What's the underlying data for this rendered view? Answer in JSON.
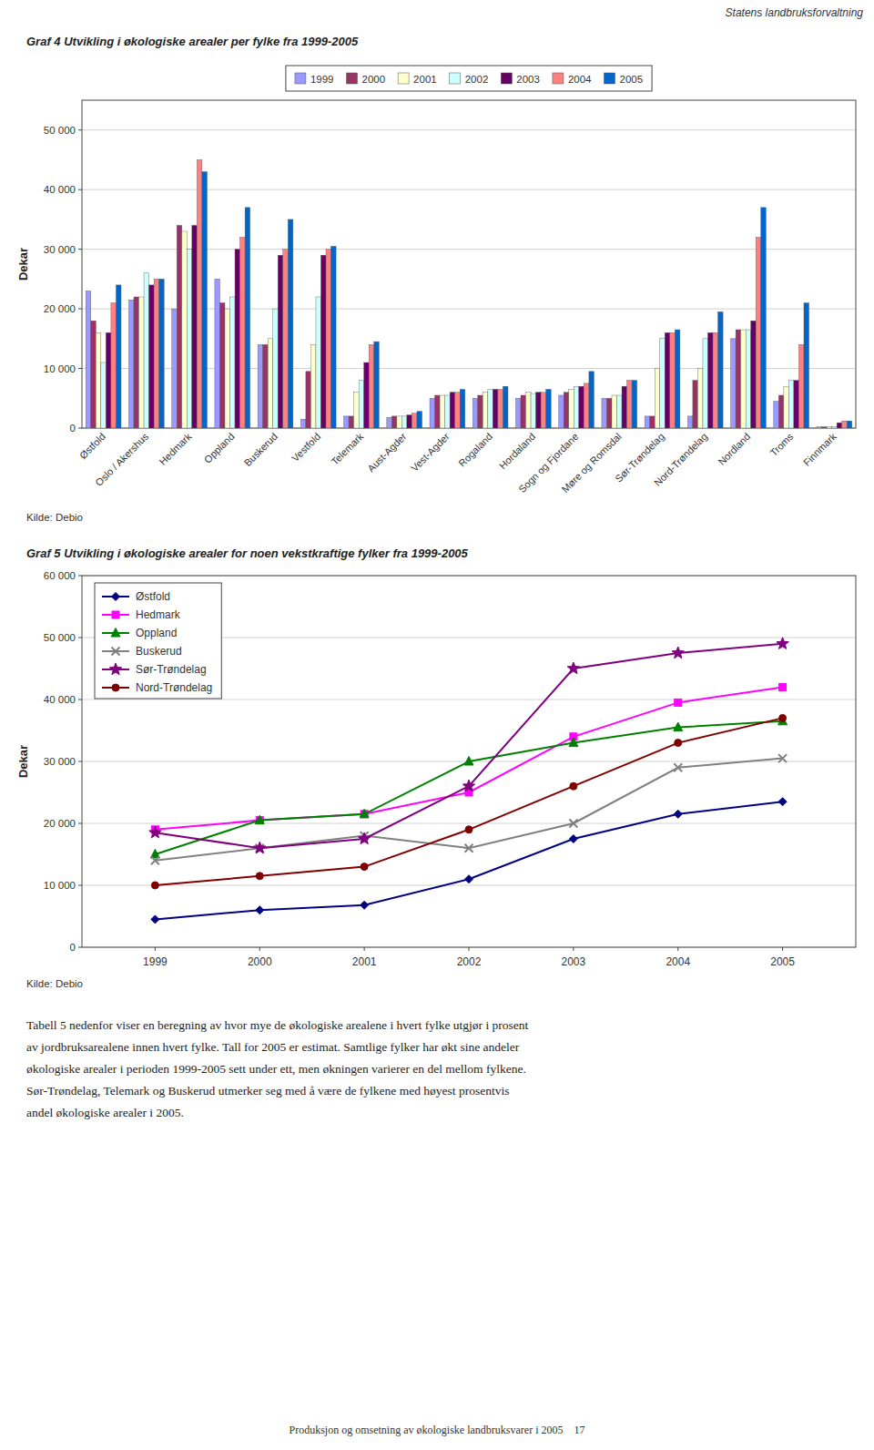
{
  "page_title": "Statens landbruksforvaltning",
  "body_text": "Tabell 5 nedenfor viser en beregning av hvor mye de økologiske arealene i hvert fylke utgjør i prosent\nav jordbruksarealene innen hvert fylke. Tall for 2005 er estimat. Samtlige fylker har økt sine andeler\nøkologiske arealer i perioden 1999-2005 sett under ett, men økningen varierer en del mellom fylkene.\nSør-Trøndelag, Telemark og Buskerud utmerker seg med å være de fylkene med høyest prosentvis\nandel økologiske arealer i 2005.",
  "footer": "Produksjon og omsetning av økologiske landbruksvarer i 2005    17",
  "chart_data": [
    {
      "type": "bar",
      "title": "Graf 4 Utvikling i økologiske arealer per fylke fra 1999-2005",
      "y_label": "Dekar",
      "annotations": [
        "Kilde: Debio"
      ],
      "categories": [
        "Østfold",
        "Oslo / Akershus",
        "Hedmark",
        "Oppland",
        "Buskerud",
        "Vestfold",
        "Telemark",
        "Aust-Agder",
        "Vest-Agder",
        "Rogaland",
        "Hordaland",
        "Sogn og Fjordane",
        "Møre og Romsdal",
        "Sør-Trøndelag",
        "Nord-Trøndelag",
        "Nordland",
        "Troms",
        "Finnmark"
      ],
      "series": [
        {
          "name": "1999",
          "color": "#9999ff",
          "values": [
            23000,
            21500,
            20000,
            25000,
            14000,
            1500,
            2000,
            1800,
            5000,
            5000,
            5000,
            5500,
            5000,
            2000,
            2000,
            15000,
            4500,
            200
          ]
        },
        {
          "name": "2000",
          "color": "#993366",
          "values": [
            18000,
            22000,
            34000,
            21000,
            14000,
            9500,
            2000,
            2000,
            5500,
            5500,
            5500,
            6000,
            5000,
            2000,
            8000,
            16500,
            5500,
            200
          ]
        },
        {
          "name": "2001",
          "color": "#ffffcc",
          "values": [
            16000,
            22000,
            33000,
            20000,
            15000,
            14000,
            6000,
            2000,
            5500,
            6000,
            6000,
            6500,
            5500,
            10000,
            10000,
            16500,
            7000,
            200
          ]
        },
        {
          "name": "2002",
          "color": "#ccffff",
          "values": [
            11000,
            26000,
            30000,
            22000,
            20000,
            22000,
            8000,
            2000,
            5500,
            6500,
            5800,
            7000,
            5500,
            15000,
            15000,
            16500,
            8000,
            200
          ]
        },
        {
          "name": "2003",
          "color": "#660066",
          "values": [
            16000,
            24000,
            34000,
            30000,
            29000,
            29000,
            11000,
            2200,
            6000,
            6500,
            6000,
            7000,
            7000,
            16000,
            16000,
            18000,
            8000,
            900
          ]
        },
        {
          "name": "2004",
          "color": "#ff8080",
          "values": [
            21000,
            25000,
            45000,
            32000,
            30000,
            30000,
            14000,
            2500,
            6000,
            6500,
            6000,
            7500,
            8000,
            16000,
            16000,
            32000,
            14000,
            1200
          ]
        },
        {
          "name": "2005",
          "color": "#0066cc",
          "values": [
            24000,
            25000,
            43000,
            37000,
            35000,
            30500,
            14500,
            2800,
            6500,
            7000,
            6500,
            9500,
            8000,
            16500,
            19500,
            37000,
            21000,
            1200
          ]
        }
      ],
      "ylim": [
        0,
        55000
      ],
      "yticks": [
        0,
        {
          "value": 10000,
          "label": "10 000"
        },
        {
          "value": 20000,
          "label": "20 000"
        },
        {
          "value": 30000,
          "label": "30 000"
        },
        {
          "value": 40000,
          "label": "40 000"
        },
        {
          "value": 50000,
          "label": "50 000"
        }
      ],
      "grid": true,
      "legend": "top"
    },
    {
      "type": "line",
      "title": "Graf 5 Utvikling i økologiske arealer for noen vekstkraftige fylker fra 1999-2005",
      "y_label": "Dekar",
      "annotations": [
        "Kilde: Debio"
      ],
      "x": [
        1999,
        2000,
        2001,
        2002,
        2003,
        2004,
        2005
      ],
      "series": [
        {
          "name": "Østfold",
          "color": "#000080",
          "marker": "diamond",
          "values": [
            4500,
            6000,
            6800,
            11000,
            17500,
            21500,
            23500
          ]
        },
        {
          "name": "Hedmark",
          "color": "#ff00ff",
          "marker": "square",
          "values": [
            19000,
            20500,
            21500,
            25000,
            34000,
            39500,
            42000
          ]
        },
        {
          "name": "Oppland",
          "color": "#008000",
          "marker": "triangle",
          "values": [
            15000,
            20500,
            21500,
            30000,
            33000,
            35500,
            36500
          ]
        },
        {
          "name": "Buskerud",
          "color": "#808080",
          "marker": "x",
          "values": [
            14000,
            16000,
            18000,
            16000,
            20000,
            29000,
            30500
          ]
        },
        {
          "name": "Sør-Trøndelag",
          "color": "#800080",
          "marker": "star",
          "values": [
            18500,
            16000,
            17500,
            26000,
            45000,
            47500,
            49000
          ]
        },
        {
          "name": "Nord-Trøndelag",
          "color": "#800000",
          "marker": "circle",
          "values": [
            10000,
            11500,
            13000,
            19000,
            26000,
            33000,
            37000
          ]
        }
      ],
      "xlim": [
        1998.3,
        2005.7
      ],
      "xticks": [
        1999,
        2000,
        2001,
        2002,
        2003,
        2004,
        2005
      ],
      "ylim": [
        0,
        60000
      ],
      "yticks": [
        0,
        {
          "value": 10000,
          "label": "10 000"
        },
        {
          "value": 20000,
          "label": "20 000"
        },
        {
          "value": 30000,
          "label": "30 000"
        },
        {
          "value": 40000,
          "label": "40 000"
        },
        {
          "value": 50000,
          "label": "50 000"
        },
        {
          "value": 60000,
          "label": "60 000"
        }
      ],
      "grid": true,
      "legend": "upper left"
    }
  ]
}
